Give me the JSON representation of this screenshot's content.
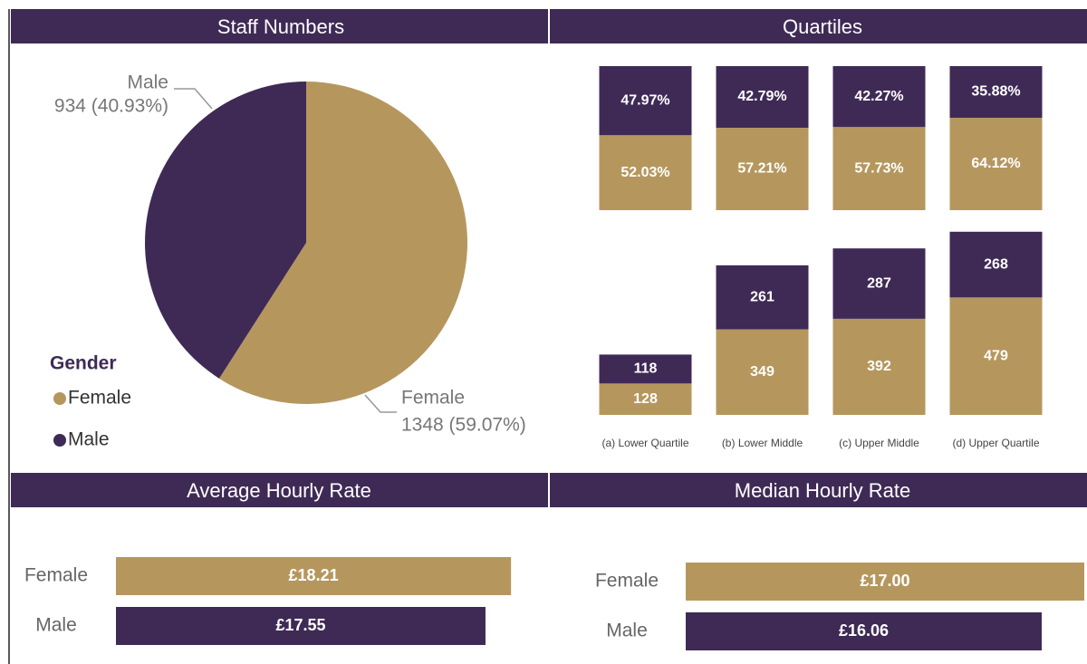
{
  "chart_data": [
    {
      "type": "pie",
      "title": "Staff Numbers",
      "legend_title": "Gender",
      "categories": [
        "Female",
        "Male"
      ],
      "values": [
        1348,
        934
      ],
      "value_labels": [
        "1348 (59.07%)",
        "934 (40.93%)"
      ],
      "colors": [
        "#b5975e",
        "#3f2a56"
      ]
    },
    {
      "type": "stacked_bar",
      "title": "Quartiles",
      "ylim": [
        0,
        100
      ],
      "series": [
        {
          "name": "Female",
          "color": "#b5975e",
          "values": [
            52.03,
            57.21,
            57.73,
            64.12
          ],
          "value_labels": [
            "52.03%",
            "57.21%",
            "57.73%",
            "64.12%"
          ]
        },
        {
          "name": "Male",
          "color": "#3f2a56",
          "values": [
            47.97,
            42.79,
            42.27,
            35.88
          ],
          "value_labels": [
            "47.97%",
            "42.79%",
            "42.27%",
            "35.88%"
          ]
        }
      ]
    },
    {
      "type": "stacked_bar",
      "ylim": [
        0,
        750
      ],
      "categories": [
        "(a) Lower Quartile",
        "(b) Lower Middle",
        "(c) Upper Middle",
        "(d) Upper Quartile"
      ],
      "series": [
        {
          "name": "Female",
          "color": "#b5975e",
          "values": [
            128,
            349,
            392,
            479
          ]
        },
        {
          "name": "Male",
          "color": "#3f2a56",
          "values": [
            118,
            261,
            287,
            268
          ]
        }
      ]
    },
    {
      "type": "hbar",
      "title": "Average Hourly Rate",
      "categories": [
        "Female",
        "Male"
      ],
      "values": [
        18.21,
        17.55
      ],
      "value_labels": [
        "£18.21",
        "£17.55"
      ],
      "colors": [
        "#b5975e",
        "#3f2a56"
      ],
      "xlim": [
        8,
        18.3
      ]
    },
    {
      "type": "hbar",
      "title": "Median Hourly Rate",
      "categories": [
        "Female",
        "Male"
      ],
      "values": [
        17.0,
        16.06
      ],
      "value_labels": [
        "£17.00",
        "£16.06"
      ],
      "colors": [
        "#b5975e",
        "#3f2a56"
      ],
      "xlim": [
        8.2,
        17.0
      ]
    }
  ]
}
